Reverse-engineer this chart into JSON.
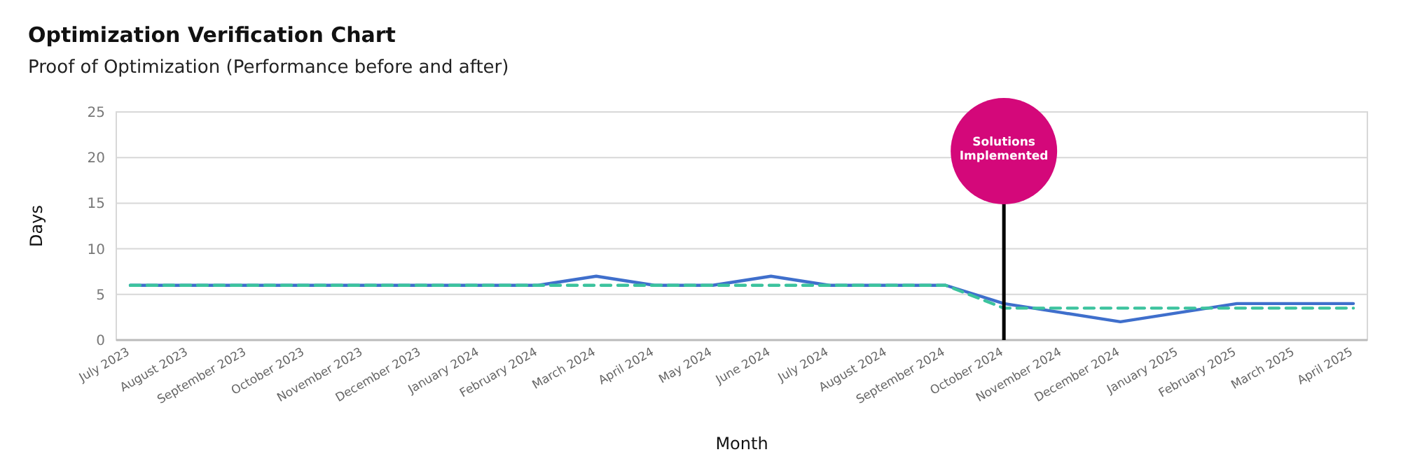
{
  "chart_data": {
    "type": "line",
    "title": "Optimization Verification Chart",
    "subtitle": "Proof of Optimization (Performance before and after)",
    "xlabel": "Month",
    "ylabel": "Days",
    "categories": [
      "July 2023",
      "August 2023",
      "September 2023",
      "October 2023",
      "November 2023",
      "December 2023",
      "January 2024",
      "February 2024",
      "March 2024",
      "April 2024",
      "May 2024",
      "June 2024",
      "July 2024",
      "August 2024",
      "September 2024",
      "October 2024",
      "November 2024",
      "December 2024",
      "January 2025",
      "February 2025",
      "March 2025",
      "April 2025"
    ],
    "series": [
      {
        "color": "#3f6fcc",
        "line_style": "solid",
        "values": [
          6,
          6,
          6,
          6,
          6,
          6,
          6,
          6,
          7,
          6,
          6,
          7,
          6,
          6,
          6,
          4,
          3,
          2,
          3,
          4,
          4,
          4
        ]
      },
      {
        "color": "#3cc39e",
        "line_style": "dashed",
        "values": [
          6,
          6,
          6,
          6,
          6,
          6,
          6,
          6,
          6,
          6,
          6,
          6,
          6,
          6,
          6,
          3.5,
          3.5,
          3.5,
          3.5,
          3.5,
          3.5,
          3.5
        ]
      }
    ],
    "ylim": [
      0,
      25
    ],
    "yticks": [
      0,
      5,
      10,
      15,
      20,
      25
    ],
    "grid": "y",
    "ref_lines": [
      {
        "axis": "x",
        "value": "October 2024",
        "label": "Solutions Implemented",
        "color": "#000000"
      }
    ]
  }
}
